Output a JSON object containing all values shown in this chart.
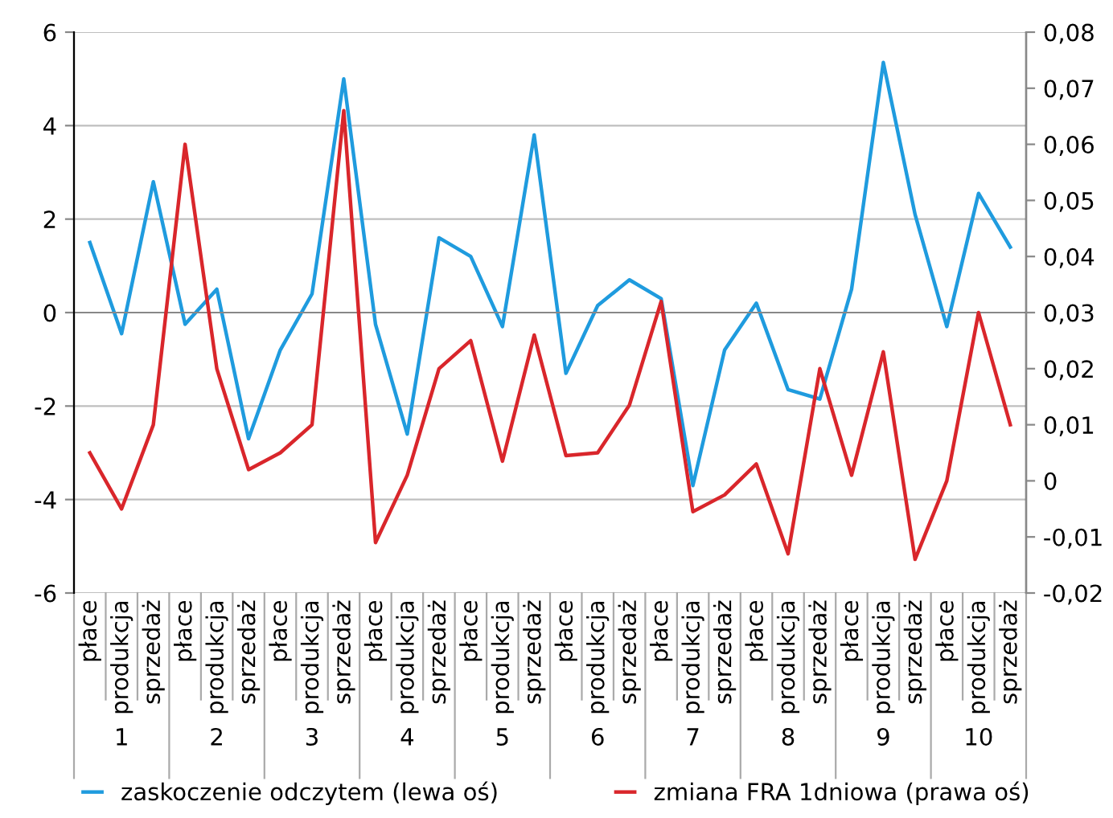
{
  "chart_data": {
    "type": "line",
    "categories": [
      "płace",
      "produkcja",
      "sprzedaż",
      "płace",
      "produkcja",
      "sprzedaż",
      "płace",
      "produkcja",
      "sprzedaż",
      "płace",
      "produkcja",
      "sprzedaż",
      "płace",
      "produkcja",
      "sprzedaż",
      "płace",
      "produkcja",
      "sprzedaż",
      "płace",
      "produkcja",
      "sprzedaż",
      "płace",
      "produkcja",
      "sprzedaż",
      "płace",
      "produkcja",
      "sprzedaż",
      "płace",
      "produkcja",
      "sprzedaż"
    ],
    "annotations": [
      "1",
      "2",
      "3",
      "4",
      "5",
      "6",
      "7",
      "8",
      "9",
      "10"
    ],
    "series": [
      {
        "name": "zaskoczenie odczytem (lewa oś)",
        "color": "#1f9bde",
        "values": [
          1.5,
          -0.45,
          2.8,
          -0.25,
          0.5,
          -2.7,
          -0.8,
          0.4,
          5.0,
          -0.25,
          -2.6,
          1.6,
          1.2,
          -0.3,
          3.8,
          -1.3,
          0.15,
          0.7,
          0.3,
          -3.7,
          -0.8,
          0.2,
          -1.65,
          -1.85,
          0.5,
          5.35,
          2.1,
          -0.3,
          2.55,
          1.4
        ]
      },
      {
        "name": "zmiana FRA 1dniowa (prawa oś)",
        "color": "#d9262b",
        "axis": "y2",
        "values": [
          0.005,
          -0.005,
          0.01,
          0.06,
          0.02,
          0.002,
          0.005,
          0.01,
          0.066,
          -0.011,
          0.001,
          0.02,
          0.025,
          0.0035,
          0.026,
          0.0045,
          0.005,
          0.0135,
          0.032,
          -0.0055,
          -0.0025,
          0.003,
          -0.013,
          0.02,
          0.001,
          0.023,
          -0.014,
          0.0,
          0.03,
          0.01
        ]
      }
    ],
    "ylim": [
      -6,
      6
    ],
    "yticks": [
      -6,
      -4,
      -2,
      0,
      2,
      4,
      6
    ],
    "y2lim": [
      -0.02,
      0.08
    ],
    "y2ticks": [
      {
        "value": -0.02,
        "label": "-0,02"
      },
      {
        "value": -0.01,
        "label": "-0,01"
      },
      {
        "value": 0,
        "label": "0"
      },
      {
        "value": 0.01,
        "label": "0,01"
      },
      {
        "value": 0.02,
        "label": "0,02"
      },
      {
        "value": 0.03,
        "label": "0,03"
      },
      {
        "value": 0.04,
        "label": "0,04"
      },
      {
        "value": 0.05,
        "label": "0,05"
      },
      {
        "value": 0.06,
        "label": "0,06"
      },
      {
        "value": 0.07,
        "label": "0,07"
      },
      {
        "value": 0.08,
        "label": "0,08"
      }
    ],
    "grid": "y",
    "legend": "bottom",
    "marker": "none",
    "line_style": "solid"
  }
}
